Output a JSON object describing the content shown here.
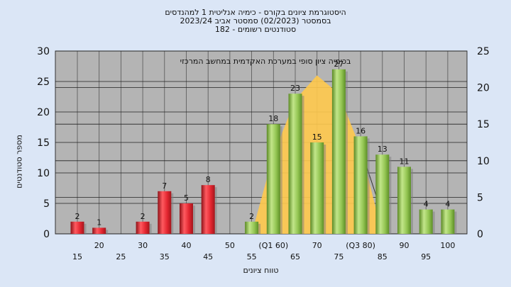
{
  "chart_data": {
    "type": "bar",
    "title_lines": [
      "היסטוגרמת ציונים בקורס - כימיה אנליטית 1 למהנדסים",
      "בסמסטר  (02/2023)  סמסטר אביב 2023/24",
      "סטודנטים רשומים - 182"
    ],
    "ylabel": "מספר סטודנטים",
    "xlabel": "טווח ציונים",
    "annotation": "בכימיה  ציון סופי במערכת האקדמית במחשב המרכזי",
    "ylim": [
      0,
      30
    ],
    "y_ticks": [
      0,
      5,
      10,
      15,
      20,
      25,
      30
    ],
    "y2lim": [
      0,
      25
    ],
    "y2_ticks": [
      0,
      5,
      10,
      15,
      20,
      25
    ],
    "x_ticks": [
      {
        "label": "15",
        "row": 2
      },
      {
        "label": "20",
        "row": 1
      },
      {
        "label": "25",
        "row": 2
      },
      {
        "label": "30",
        "row": 1
      },
      {
        "label": "35",
        "row": 2
      },
      {
        "label": "40",
        "row": 1
      },
      {
        "label": "45",
        "row": 2
      },
      {
        "label": "50",
        "row": 1
      },
      {
        "label": "55",
        "row": 2
      },
      {
        "label": "(Q1 60)",
        "row": 1
      },
      {
        "label": "65",
        "row": 2
      },
      {
        "label": "70",
        "row": 1
      },
      {
        "label": "75",
        "row": 2
      },
      {
        "label": "(Q3 80)",
        "row": 1
      },
      {
        "label": "85",
        "row": 2
      },
      {
        "label": "90",
        "row": 1
      },
      {
        "label": "95",
        "row": 2
      },
      {
        "label": "100",
        "row": 1
      }
    ],
    "bars": [
      {
        "category": "15",
        "value": 2,
        "color": "red"
      },
      {
        "category": "20",
        "value": 1,
        "color": "red"
      },
      {
        "category": "30",
        "value": 2,
        "color": "red"
      },
      {
        "category": "35",
        "value": 7,
        "color": "red"
      },
      {
        "category": "40",
        "value": 5,
        "color": "red"
      },
      {
        "category": "45",
        "value": 8,
        "color": "red"
      },
      {
        "category": "55",
        "value": 2,
        "color": "green"
      },
      {
        "category": "(Q1 60)",
        "value": 18,
        "color": "green"
      },
      {
        "category": "65",
        "value": 23,
        "color": "green"
      },
      {
        "category": "70",
        "value": 15,
        "color": "green"
      },
      {
        "category": "75",
        "value": 27,
        "color": "green"
      },
      {
        "category": "(Q3 80)",
        "value": 16,
        "color": "green"
      },
      {
        "category": "85",
        "value": 13,
        "color": "green"
      },
      {
        "category": "90",
        "value": 11,
        "color": "green"
      },
      {
        "category": "95",
        "value": 4,
        "color": "green"
      },
      {
        "category": "100",
        "value": 4,
        "color": "green"
      }
    ],
    "distribution_curve": [
      {
        "x": "55",
        "y": 0
      },
      {
        "x": "(Q1 60)",
        "y": 13
      },
      {
        "x": "65",
        "y": 22
      },
      {
        "x": "70",
        "y": 26
      },
      {
        "x": "75",
        "y": 23
      },
      {
        "x": "(Q3 80)",
        "y": 14
      },
      {
        "x": "85",
        "y": 0
      }
    ],
    "colors": {
      "plot_bg": "#b4b4b4",
      "page_bg": "#dbe6f6",
      "red": "#e8323a",
      "green": "#9ccc5a",
      "curve": "#ffc94d"
    }
  }
}
